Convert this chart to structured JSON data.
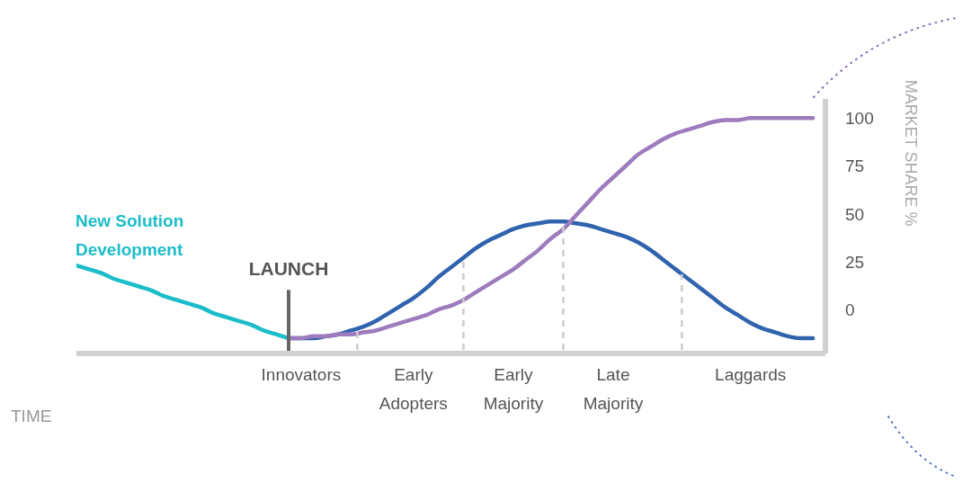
{
  "chart_data": {
    "type": "line",
    "xlabel": "TIME",
    "ylabel": "MARKET SHARE %",
    "categories": [
      null,
      null,
      null,
      null,
      null,
      null,
      null,
      null,
      null,
      null,
      null,
      null,
      null,
      null,
      null,
      null,
      null,
      null,
      "Innovators",
      null,
      null,
      null,
      null,
      null,
      null,
      null,
      null,
      "Early Adopters",
      null,
      null,
      null,
      null,
      null,
      null,
      null,
      "Early Majority",
      null,
      null,
      null,
      null,
      null,
      null,
      null,
      "Late Majority",
      null,
      null,
      null,
      null,
      null,
      null,
      null,
      null,
      null,
      null,
      "Laggards",
      null,
      null,
      null,
      null,
      null,
      null
    ],
    "ylim": [
      -23,
      110
    ],
    "yticks": [
      0,
      25,
      50,
      75,
      100
    ],
    "series": [
      {
        "name": "New Solution Development",
        "color": "#1bbdc9",
        "values": [
          23,
          21,
          19,
          16,
          14,
          12,
          10,
          7,
          5,
          3,
          1,
          -2,
          -4,
          -6,
          -8,
          -11,
          -13,
          -15,
          null,
          null,
          null,
          null,
          null,
          null,
          null,
          null,
          null,
          null,
          null,
          null,
          null,
          null,
          null,
          null,
          null,
          null,
          null,
          null,
          null,
          null,
          null,
          null,
          null,
          null,
          null,
          null,
          null,
          null,
          null,
          null,
          null,
          null,
          null,
          null,
          null,
          null,
          null,
          null,
          null,
          null,
          null
        ]
      },
      {
        "color": "#2f63ae",
        "values": [
          null,
          null,
          null,
          null,
          null,
          null,
          null,
          null,
          null,
          null,
          null,
          null,
          null,
          null,
          null,
          null,
          null,
          -15,
          -15,
          -15,
          -14,
          -13,
          -11,
          -9,
          -6,
          -2,
          2,
          6,
          11,
          17,
          22,
          27,
          32,
          36,
          39,
          42,
          44,
          45,
          46,
          46,
          45,
          44,
          42,
          40,
          38,
          35,
          31,
          26,
          21,
          16,
          11,
          6,
          1,
          -3,
          -7,
          -10,
          -12,
          -14,
          -15,
          -15,
          null
        ]
      },
      {
        "color": "#9d7bbd",
        "values": [
          null,
          null,
          null,
          null,
          null,
          null,
          null,
          null,
          null,
          null,
          null,
          null,
          null,
          null,
          null,
          null,
          null,
          -15,
          -15,
          -14,
          -14,
          -13,
          -13,
          -12,
          -11,
          -9,
          -7,
          -5,
          -3,
          0,
          2,
          5,
          9,
          13,
          17,
          21,
          26,
          31,
          37,
          42,
          49,
          56,
          63,
          69,
          75,
          81,
          85,
          89,
          92,
          94,
          96,
          98,
          99,
          99,
          100,
          100,
          100,
          100,
          100,
          100,
          null
        ]
      }
    ],
    "annotations": [
      "LAUNCH"
    ],
    "grid": false,
    "legend": false,
    "marker": "none",
    "line_style": "solid"
  }
}
